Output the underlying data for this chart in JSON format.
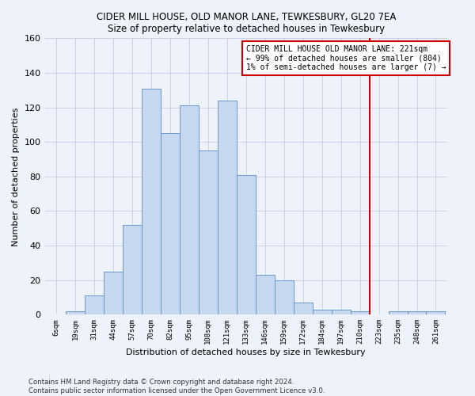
{
  "title": "CIDER MILL HOUSE, OLD MANOR LANE, TEWKESBURY, GL20 7EA",
  "subtitle": "Size of property relative to detached houses in Tewkesbury",
  "xlabel": "Distribution of detached houses by size in Tewkesbury",
  "ylabel": "Number of detached properties",
  "bar_labels": [
    "6sqm",
    "19sqm",
    "31sqm",
    "44sqm",
    "57sqm",
    "70sqm",
    "82sqm",
    "95sqm",
    "108sqm",
    "121sqm",
    "133sqm",
    "146sqm",
    "159sqm",
    "172sqm",
    "184sqm",
    "197sqm",
    "210sqm",
    "223sqm",
    "235sqm",
    "248sqm",
    "261sqm"
  ],
  "bar_values": [
    0,
    2,
    11,
    25,
    52,
    131,
    105,
    121,
    95,
    124,
    81,
    23,
    20,
    7,
    3,
    3,
    2,
    0,
    2,
    2,
    2
  ],
  "bar_color": "#c5d8f0",
  "bar_edge_color": "#5b8dc8",
  "vline_pos": 16.5,
  "vline_color": "#cc0000",
  "annotation_text": "CIDER MILL HOUSE OLD MANOR LANE: 221sqm\n← 99% of detached houses are smaller (804)\n1% of semi-detached houses are larger (7) →",
  "annotation_box_color": "#cc0000",
  "ylim": [
    0,
    160
  ],
  "yticks": [
    0,
    20,
    40,
    60,
    80,
    100,
    120,
    140,
    160
  ],
  "footer_line1": "Contains HM Land Registry data © Crown copyright and database right 2024.",
  "footer_line2": "Contains public sector information licensed under the Open Government Licence v3.0.",
  "bg_color": "#eef2fb",
  "grid_color": "#c5cde0"
}
